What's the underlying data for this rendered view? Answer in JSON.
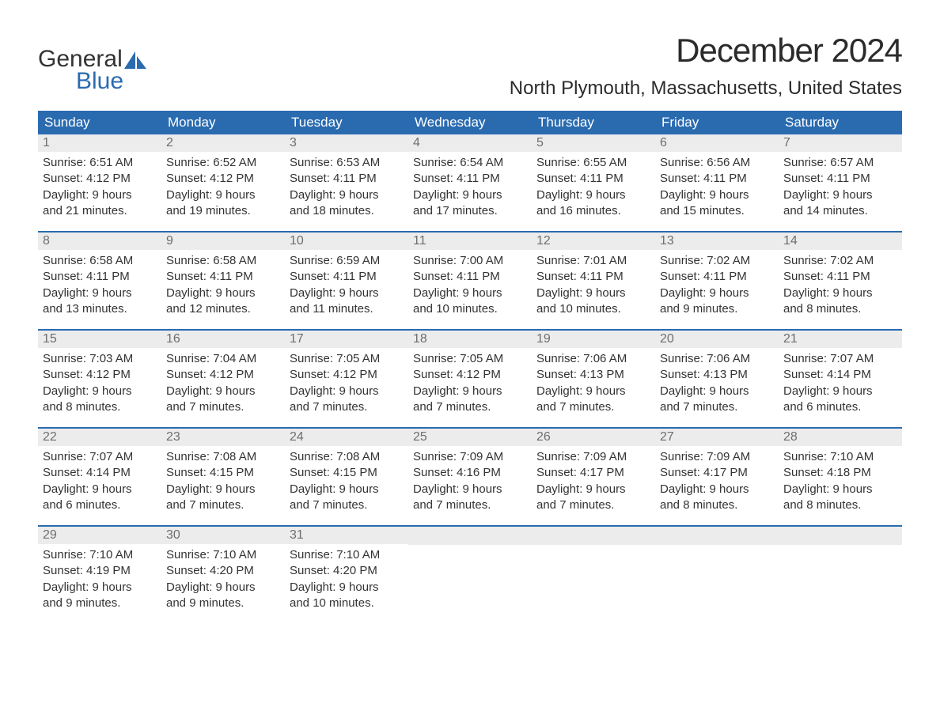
{
  "logo": {
    "word1": "General",
    "word2": "Blue"
  },
  "title": "December 2024",
  "location": "North Plymouth, Massachusetts, United States",
  "colors": {
    "brand_blue": "#2a6bb0",
    "header_bg": "#2a6bb0",
    "daynum_bg": "#ececec",
    "text": "#333333",
    "muted": "#6e6e6e"
  },
  "day_names": [
    "Sunday",
    "Monday",
    "Tuesday",
    "Wednesday",
    "Thursday",
    "Friday",
    "Saturday"
  ],
  "weeks": [
    [
      {
        "n": "1",
        "sr": "Sunrise: 6:51 AM",
        "ss": "Sunset: 4:12 PM",
        "d1": "Daylight: 9 hours",
        "d2": "and 21 minutes."
      },
      {
        "n": "2",
        "sr": "Sunrise: 6:52 AM",
        "ss": "Sunset: 4:12 PM",
        "d1": "Daylight: 9 hours",
        "d2": "and 19 minutes."
      },
      {
        "n": "3",
        "sr": "Sunrise: 6:53 AM",
        "ss": "Sunset: 4:11 PM",
        "d1": "Daylight: 9 hours",
        "d2": "and 18 minutes."
      },
      {
        "n": "4",
        "sr": "Sunrise: 6:54 AM",
        "ss": "Sunset: 4:11 PM",
        "d1": "Daylight: 9 hours",
        "d2": "and 17 minutes."
      },
      {
        "n": "5",
        "sr": "Sunrise: 6:55 AM",
        "ss": "Sunset: 4:11 PM",
        "d1": "Daylight: 9 hours",
        "d2": "and 16 minutes."
      },
      {
        "n": "6",
        "sr": "Sunrise: 6:56 AM",
        "ss": "Sunset: 4:11 PM",
        "d1": "Daylight: 9 hours",
        "d2": "and 15 minutes."
      },
      {
        "n": "7",
        "sr": "Sunrise: 6:57 AM",
        "ss": "Sunset: 4:11 PM",
        "d1": "Daylight: 9 hours",
        "d2": "and 14 minutes."
      }
    ],
    [
      {
        "n": "8",
        "sr": "Sunrise: 6:58 AM",
        "ss": "Sunset: 4:11 PM",
        "d1": "Daylight: 9 hours",
        "d2": "and 13 minutes."
      },
      {
        "n": "9",
        "sr": "Sunrise: 6:58 AM",
        "ss": "Sunset: 4:11 PM",
        "d1": "Daylight: 9 hours",
        "d2": "and 12 minutes."
      },
      {
        "n": "10",
        "sr": "Sunrise: 6:59 AM",
        "ss": "Sunset: 4:11 PM",
        "d1": "Daylight: 9 hours",
        "d2": "and 11 minutes."
      },
      {
        "n": "11",
        "sr": "Sunrise: 7:00 AM",
        "ss": "Sunset: 4:11 PM",
        "d1": "Daylight: 9 hours",
        "d2": "and 10 minutes."
      },
      {
        "n": "12",
        "sr": "Sunrise: 7:01 AM",
        "ss": "Sunset: 4:11 PM",
        "d1": "Daylight: 9 hours",
        "d2": "and 10 minutes."
      },
      {
        "n": "13",
        "sr": "Sunrise: 7:02 AM",
        "ss": "Sunset: 4:11 PM",
        "d1": "Daylight: 9 hours",
        "d2": "and 9 minutes."
      },
      {
        "n": "14",
        "sr": "Sunrise: 7:02 AM",
        "ss": "Sunset: 4:11 PM",
        "d1": "Daylight: 9 hours",
        "d2": "and 8 minutes."
      }
    ],
    [
      {
        "n": "15",
        "sr": "Sunrise: 7:03 AM",
        "ss": "Sunset: 4:12 PM",
        "d1": "Daylight: 9 hours",
        "d2": "and 8 minutes."
      },
      {
        "n": "16",
        "sr": "Sunrise: 7:04 AM",
        "ss": "Sunset: 4:12 PM",
        "d1": "Daylight: 9 hours",
        "d2": "and 7 minutes."
      },
      {
        "n": "17",
        "sr": "Sunrise: 7:05 AM",
        "ss": "Sunset: 4:12 PM",
        "d1": "Daylight: 9 hours",
        "d2": "and 7 minutes."
      },
      {
        "n": "18",
        "sr": "Sunrise: 7:05 AM",
        "ss": "Sunset: 4:12 PM",
        "d1": "Daylight: 9 hours",
        "d2": "and 7 minutes."
      },
      {
        "n": "19",
        "sr": "Sunrise: 7:06 AM",
        "ss": "Sunset: 4:13 PM",
        "d1": "Daylight: 9 hours",
        "d2": "and 7 minutes."
      },
      {
        "n": "20",
        "sr": "Sunrise: 7:06 AM",
        "ss": "Sunset: 4:13 PM",
        "d1": "Daylight: 9 hours",
        "d2": "and 7 minutes."
      },
      {
        "n": "21",
        "sr": "Sunrise: 7:07 AM",
        "ss": "Sunset: 4:14 PM",
        "d1": "Daylight: 9 hours",
        "d2": "and 6 minutes."
      }
    ],
    [
      {
        "n": "22",
        "sr": "Sunrise: 7:07 AM",
        "ss": "Sunset: 4:14 PM",
        "d1": "Daylight: 9 hours",
        "d2": "and 6 minutes."
      },
      {
        "n": "23",
        "sr": "Sunrise: 7:08 AM",
        "ss": "Sunset: 4:15 PM",
        "d1": "Daylight: 9 hours",
        "d2": "and 7 minutes."
      },
      {
        "n": "24",
        "sr": "Sunrise: 7:08 AM",
        "ss": "Sunset: 4:15 PM",
        "d1": "Daylight: 9 hours",
        "d2": "and 7 minutes."
      },
      {
        "n": "25",
        "sr": "Sunrise: 7:09 AM",
        "ss": "Sunset: 4:16 PM",
        "d1": "Daylight: 9 hours",
        "d2": "and 7 minutes."
      },
      {
        "n": "26",
        "sr": "Sunrise: 7:09 AM",
        "ss": "Sunset: 4:17 PM",
        "d1": "Daylight: 9 hours",
        "d2": "and 7 minutes."
      },
      {
        "n": "27",
        "sr": "Sunrise: 7:09 AM",
        "ss": "Sunset: 4:17 PM",
        "d1": "Daylight: 9 hours",
        "d2": "and 8 minutes."
      },
      {
        "n": "28",
        "sr": "Sunrise: 7:10 AM",
        "ss": "Sunset: 4:18 PM",
        "d1": "Daylight: 9 hours",
        "d2": "and 8 minutes."
      }
    ],
    [
      {
        "n": "29",
        "sr": "Sunrise: 7:10 AM",
        "ss": "Sunset: 4:19 PM",
        "d1": "Daylight: 9 hours",
        "d2": "and 9 minutes."
      },
      {
        "n": "30",
        "sr": "Sunrise: 7:10 AM",
        "ss": "Sunset: 4:20 PM",
        "d1": "Daylight: 9 hours",
        "d2": "and 9 minutes."
      },
      {
        "n": "31",
        "sr": "Sunrise: 7:10 AM",
        "ss": "Sunset: 4:20 PM",
        "d1": "Daylight: 9 hours",
        "d2": "and 10 minutes."
      },
      {
        "empty": true
      },
      {
        "empty": true
      },
      {
        "empty": true
      },
      {
        "empty": true
      }
    ]
  ]
}
